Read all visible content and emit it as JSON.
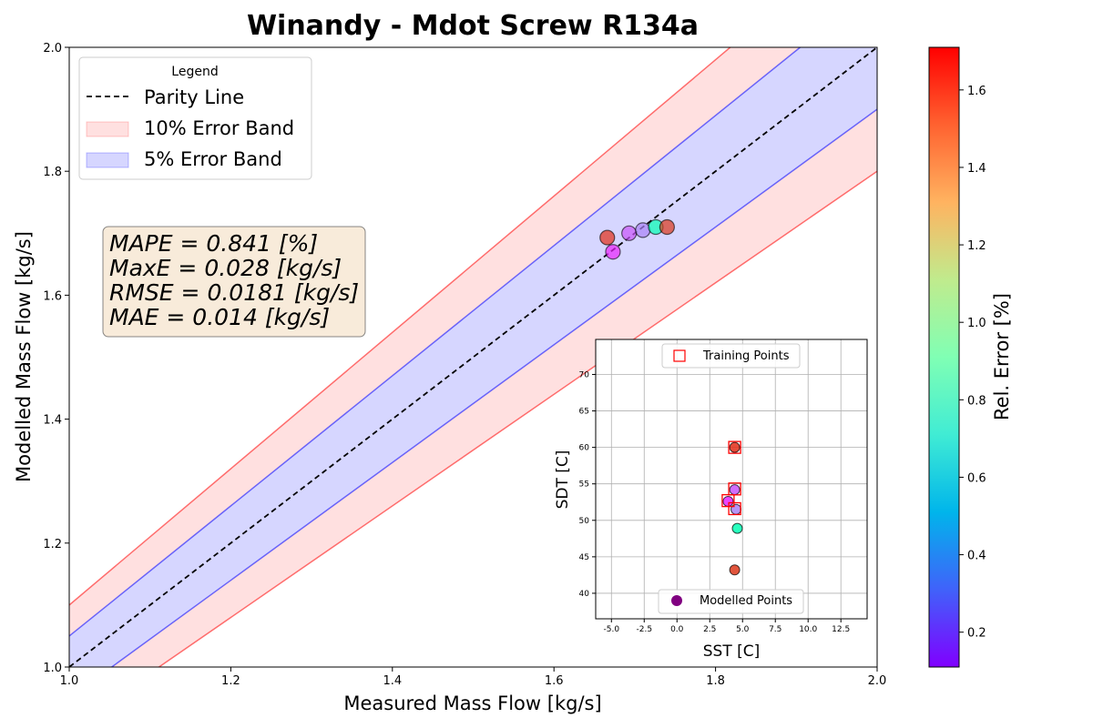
{
  "chart_data": [
    {
      "type": "scatter",
      "title": "Winandy - Mdot Screw R134a",
      "xlabel": "Measured Mass Flow [kg/s]",
      "ylabel": "Modelled Mass Flow [kg/s]",
      "xlim": [
        1.0,
        2.0
      ],
      "ylim": [
        1.0,
        2.0
      ],
      "xticks": [
        "1.0",
        "1.2",
        "1.4",
        "1.6",
        "1.8",
        "2.0"
      ],
      "yticks": [
        "1.0",
        "1.2",
        "1.4",
        "1.6",
        "1.8",
        "2.0"
      ],
      "grid": false,
      "legend": {
        "title": "Legend",
        "placement": "top-left",
        "entries": [
          {
            "label": "Parity Line",
            "style": "dashed-line",
            "color": "#000000"
          },
          {
            "label": "10% Error Band",
            "style": "patch",
            "color": "#ff0000"
          },
          {
            "label": "5% Error Band",
            "style": "patch",
            "color": "#0000ff"
          }
        ]
      },
      "bands": [
        {
          "name": "10% Error Band",
          "factor": 0.1,
          "color": "#ff0000"
        },
        {
          "name": "5% Error Band",
          "factor": 0.05,
          "color": "#0000ff"
        }
      ],
      "stats": [
        "MAPE = 0.841 [%]",
        "MaxE = 0.028 [kg/s]",
        "RMSE = 0.0181 [kg/s]",
        "MAE = 0.014 [kg/s]"
      ],
      "points": [
        {
          "x": 1.666,
          "y": 1.693,
          "err": 1.62
        },
        {
          "x": 1.673,
          "y": 1.67,
          "err": 0.18
        },
        {
          "x": 1.693,
          "y": 1.7,
          "err": 0.28
        },
        {
          "x": 1.71,
          "y": 1.705,
          "err": 0.38
        },
        {
          "x": 1.726,
          "y": 1.71,
          "err": 0.92
        },
        {
          "x": 1.74,
          "y": 1.71,
          "err": 1.6
        }
      ]
    },
    {
      "type": "scatter",
      "xlabel": "SST [C]",
      "ylabel": "SDT [C]",
      "xlim": [
        -6.2,
        14.5
      ],
      "ylim": [
        36.5,
        74.8
      ],
      "xticks": [
        "-5.0",
        "-2.5",
        "0.0",
        "2.5",
        "5.0",
        "7.5",
        "10.0",
        "12.5"
      ],
      "yticks": [
        "40",
        "45",
        "50",
        "55",
        "60",
        "65",
        "70"
      ],
      "grid": true,
      "legend_top": {
        "label": "Training Points",
        "placement": "upper-center"
      },
      "legend_bottom": {
        "label": "Modelled Points",
        "placement": "lower-center"
      },
      "training_points": [
        {
          "x": 4.4,
          "y": 60.0
        },
        {
          "x": 4.4,
          "y": 54.3
        },
        {
          "x": 3.9,
          "y": 52.7
        },
        {
          "x": 4.4,
          "y": 51.6
        }
      ],
      "modelled_points": [
        {
          "x": 4.4,
          "y": 60.0,
          "err": 1.62
        },
        {
          "x": 4.4,
          "y": 54.2,
          "err": 0.28
        },
        {
          "x": 3.9,
          "y": 52.6,
          "err": 0.18
        },
        {
          "x": 4.5,
          "y": 51.5,
          "err": 0.38
        },
        {
          "x": 4.6,
          "y": 48.9,
          "err": 0.92
        },
        {
          "x": 4.4,
          "y": 43.2,
          "err": 1.6
        }
      ]
    }
  ],
  "colorbar": {
    "label": "Rel. Error [%]",
    "min": 0.11,
    "max": 1.71,
    "ticks": [
      "0.2",
      "0.4",
      "0.6",
      "0.8",
      "1.0",
      "1.2",
      "1.4",
      "1.6"
    ],
    "colormap": "rainbow"
  }
}
